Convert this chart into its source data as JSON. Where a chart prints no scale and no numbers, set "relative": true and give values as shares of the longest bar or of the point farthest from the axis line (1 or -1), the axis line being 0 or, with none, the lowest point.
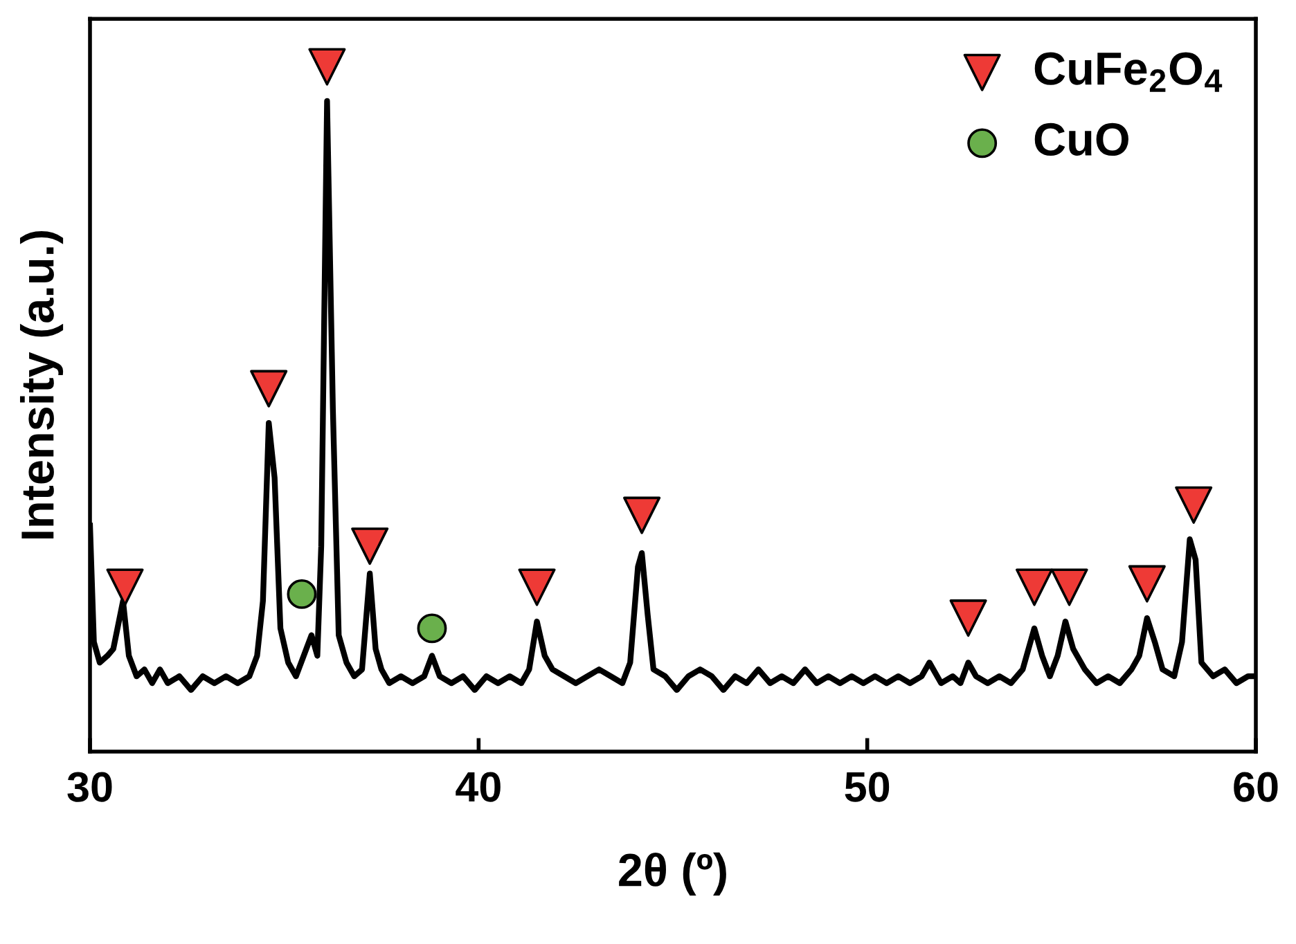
{
  "chart_data": {
    "type": "line",
    "relative": true,
    "xlabel": "2θ (º)",
    "ylabel": "Intensity (a.u.)",
    "xlim": [
      30,
      60
    ],
    "xticks": [
      30,
      40,
      50,
      60
    ],
    "tick_labels": "x",
    "grid": false,
    "legend": "top right",
    "series": [
      {
        "color": "#000000",
        "marker": "none",
        "x": [
          30.0,
          30.1,
          30.25,
          30.45,
          30.6,
          30.85,
          31.0,
          31.2,
          31.4,
          31.6,
          31.8,
          32.0,
          32.3,
          32.6,
          32.9,
          33.2,
          33.5,
          33.8,
          34.1,
          34.3,
          34.45,
          34.6,
          34.75,
          34.9,
          35.1,
          35.3,
          35.5,
          35.7,
          35.85,
          35.95,
          36.1,
          36.25,
          36.4,
          36.6,
          36.8,
          37.0,
          37.2,
          37.35,
          37.5,
          37.7,
          38.0,
          38.3,
          38.6,
          38.8,
          39.0,
          39.3,
          39.6,
          39.9,
          40.2,
          40.5,
          40.8,
          41.1,
          41.3,
          41.5,
          41.7,
          41.9,
          42.2,
          42.5,
          42.8,
          43.1,
          43.4,
          43.7,
          43.9,
          44.1,
          44.2,
          44.35,
          44.5,
          44.8,
          45.1,
          45.4,
          45.7,
          46.0,
          46.3,
          46.6,
          46.9,
          47.2,
          47.5,
          47.8,
          48.1,
          48.4,
          48.7,
          49.0,
          49.3,
          49.6,
          49.9,
          50.2,
          50.5,
          50.8,
          51.1,
          51.4,
          51.6,
          51.9,
          52.2,
          52.4,
          52.6,
          52.8,
          53.1,
          53.4,
          53.7,
          54.0,
          54.3,
          54.5,
          54.7,
          54.9,
          55.1,
          55.3,
          55.6,
          55.9,
          56.2,
          56.5,
          56.8,
          57.0,
          57.2,
          57.4,
          57.6,
          57.9,
          58.1,
          58.3,
          58.45,
          58.6,
          58.9,
          59.2,
          59.5,
          59.8,
          60.0
        ],
        "values": [
          0.33,
          0.16,
          0.13,
          0.14,
          0.15,
          0.22,
          0.14,
          0.11,
          0.12,
          0.1,
          0.12,
          0.1,
          0.11,
          0.09,
          0.11,
          0.1,
          0.11,
          0.1,
          0.11,
          0.14,
          0.22,
          0.48,
          0.4,
          0.18,
          0.13,
          0.11,
          0.14,
          0.17,
          0.14,
          0.3,
          0.95,
          0.5,
          0.17,
          0.13,
          0.11,
          0.12,
          0.26,
          0.15,
          0.12,
          0.1,
          0.11,
          0.1,
          0.11,
          0.14,
          0.11,
          0.1,
          0.11,
          0.09,
          0.11,
          0.1,
          0.11,
          0.1,
          0.12,
          0.19,
          0.14,
          0.12,
          0.11,
          0.1,
          0.11,
          0.12,
          0.11,
          0.1,
          0.13,
          0.27,
          0.29,
          0.2,
          0.12,
          0.11,
          0.09,
          0.11,
          0.12,
          0.11,
          0.09,
          0.11,
          0.1,
          0.12,
          0.1,
          0.11,
          0.1,
          0.12,
          0.1,
          0.11,
          0.1,
          0.11,
          0.1,
          0.11,
          0.1,
          0.11,
          0.1,
          0.11,
          0.13,
          0.1,
          0.11,
          0.1,
          0.13,
          0.11,
          0.1,
          0.11,
          0.1,
          0.12,
          0.18,
          0.14,
          0.11,
          0.14,
          0.19,
          0.15,
          0.12,
          0.1,
          0.11,
          0.1,
          0.12,
          0.14,
          0.195,
          0.16,
          0.12,
          0.11,
          0.16,
          0.31,
          0.28,
          0.13,
          0.11,
          0.12,
          0.1,
          0.11,
          0.11
        ]
      },
      {
        "type": "scatter",
        "name": "CuFe$_{2}$O$_{4}$",
        "color": "#ee3a36",
        "marker": "triangle",
        "x": [
          30.9,
          34.6,
          36.1,
          37.2,
          41.5,
          44.2,
          52.6,
          54.3,
          55.2,
          57.2,
          58.4
        ],
        "values": [
          0.24,
          0.53,
          1.0,
          0.3,
          0.24,
          0.345,
          0.195,
          0.24,
          0.24,
          0.245,
          0.36
        ]
      },
      {
        "type": "scatter",
        "name": "CuO",
        "color": "#6ab04c",
        "marker": "circle",
        "x": [
          35.45,
          38.8
        ],
        "values": [
          0.23,
          0.18
        ]
      }
    ]
  }
}
